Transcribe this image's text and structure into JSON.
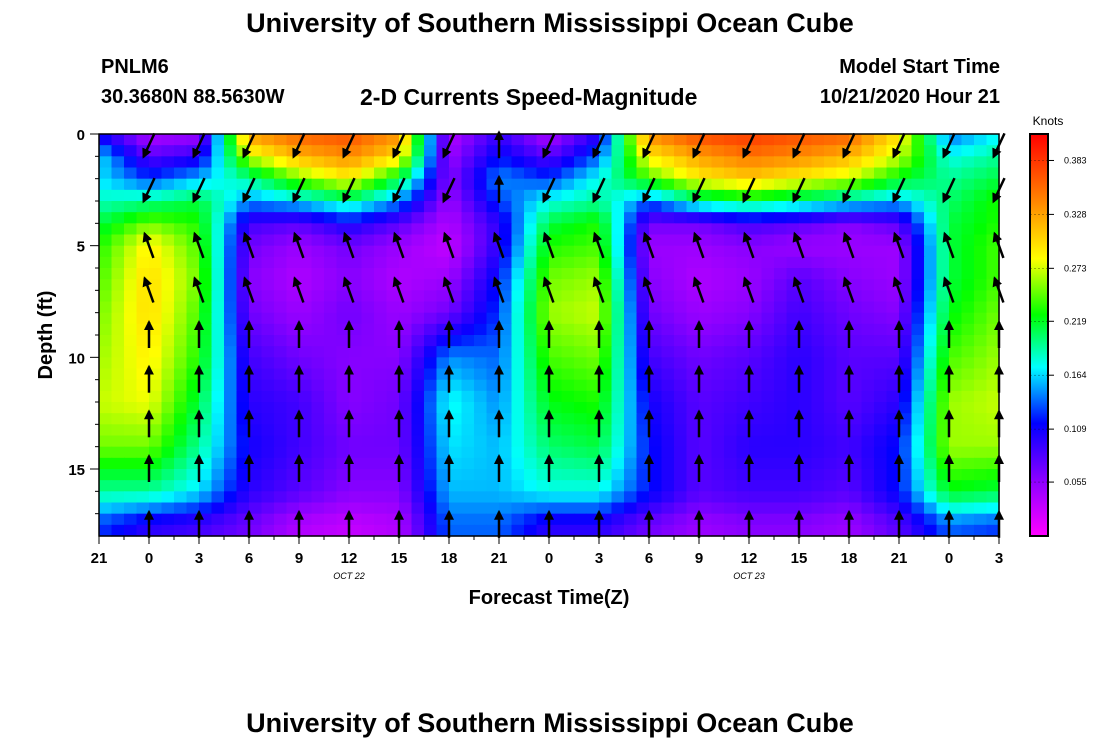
{
  "header": {
    "title": "University of Southern Mississippi Ocean Cube",
    "footer_title": "University of Southern Mississippi Ocean Cube",
    "station_id": "PNLM6",
    "station_coords": "30.3680N 88.5630W",
    "model_start_label": "Model Start Time",
    "model_start_value": "10/21/2020 Hour 21"
  },
  "chart_data": {
    "type": "heatmap",
    "title": "2-D Currents Speed-Magnitude",
    "xlabel": "Forecast Time(Z)",
    "ylabel": "Depth (ft)",
    "x_ticks": [
      "21",
      "0",
      "3",
      "6",
      "9",
      "12",
      "15",
      "18",
      "21",
      "0",
      "3",
      "6",
      "9",
      "12",
      "15",
      "18",
      "21",
      "0",
      "3"
    ],
    "y_ticks": [
      "0",
      "5",
      "10",
      "15"
    ],
    "date_labels": [
      {
        "text": "OCT 22",
        "at_tick": 5
      },
      {
        "text": "OCT 23",
        "at_tick": 13
      }
    ],
    "hours_range": [
      0,
      54
    ],
    "depth_range_ft": [
      0,
      18
    ],
    "colorbar": {
      "label": "Knots",
      "ticks": [
        "0.383",
        "0.328",
        "0.273",
        "0.219",
        "0.164",
        "0.109",
        "0.055"
      ],
      "range": [
        0,
        0.41
      ]
    },
    "vector_columns_hours": [
      3,
      6,
      9,
      12,
      15,
      18,
      21,
      24,
      27,
      30,
      33,
      36,
      39,
      42,
      45,
      48,
      51,
      54
    ],
    "vector_rows_ft": [
      0.5,
      2.5,
      5,
      7,
      9,
      11,
      13,
      15,
      17.5
    ],
    "speed_grid": {
      "depths_ft": [
        0.3,
        1,
        2,
        3,
        4,
        5,
        6.5,
        8,
        10,
        12,
        14,
        16,
        17.5
      ],
      "hours": [
        0,
        3,
        6,
        9,
        12,
        15,
        18,
        21,
        24,
        27,
        30,
        33,
        36,
        39,
        42,
        45,
        48,
        51,
        54
      ],
      "values": [
        [
          0.12,
          0.05,
          0.06,
          0.33,
          0.36,
          0.37,
          0.34,
          0.04,
          0.1,
          0.05,
          0.11,
          0.34,
          0.37,
          0.38,
          0.37,
          0.36,
          0.3,
          0.15,
          0.18
        ],
        [
          0.17,
          0.08,
          0.1,
          0.28,
          0.33,
          0.35,
          0.31,
          0.05,
          0.12,
          0.08,
          0.14,
          0.3,
          0.34,
          0.36,
          0.35,
          0.33,
          0.28,
          0.18,
          0.2
        ],
        [
          0.17,
          0.13,
          0.16,
          0.2,
          0.26,
          0.3,
          0.22,
          0.06,
          0.15,
          0.13,
          0.18,
          0.25,
          0.3,
          0.32,
          0.3,
          0.28,
          0.23,
          0.2,
          0.22
        ],
        [
          0.19,
          0.2,
          0.22,
          0.15,
          0.17,
          0.2,
          0.15,
          0.05,
          0.13,
          0.18,
          0.2,
          0.14,
          0.2,
          0.22,
          0.2,
          0.18,
          0.16,
          0.21,
          0.24
        ],
        [
          0.22,
          0.26,
          0.24,
          0.09,
          0.08,
          0.11,
          0.08,
          0.04,
          0.1,
          0.22,
          0.24,
          0.07,
          0.07,
          0.09,
          0.08,
          0.06,
          0.08,
          0.22,
          0.24
        ],
        [
          0.24,
          0.3,
          0.25,
          0.07,
          0.05,
          0.07,
          0.05,
          0.03,
          0.1,
          0.24,
          0.25,
          0.05,
          0.05,
          0.06,
          0.05,
          0.05,
          0.05,
          0.22,
          0.25
        ],
        [
          0.25,
          0.31,
          0.26,
          0.06,
          0.04,
          0.06,
          0.04,
          0.05,
          0.12,
          0.26,
          0.27,
          0.06,
          0.04,
          0.05,
          0.08,
          0.06,
          0.05,
          0.22,
          0.25
        ],
        [
          0.26,
          0.31,
          0.25,
          0.07,
          0.05,
          0.07,
          0.05,
          0.07,
          0.13,
          0.27,
          0.28,
          0.07,
          0.05,
          0.06,
          0.09,
          0.07,
          0.06,
          0.23,
          0.26
        ],
        [
          0.27,
          0.3,
          0.24,
          0.09,
          0.07,
          0.06,
          0.06,
          0.15,
          0.14,
          0.25,
          0.26,
          0.09,
          0.07,
          0.08,
          0.1,
          0.08,
          0.08,
          0.25,
          0.27
        ],
        [
          0.28,
          0.29,
          0.22,
          0.1,
          0.09,
          0.06,
          0.07,
          0.18,
          0.15,
          0.23,
          0.24,
          0.11,
          0.08,
          0.09,
          0.1,
          0.08,
          0.1,
          0.27,
          0.28
        ],
        [
          0.26,
          0.26,
          0.2,
          0.11,
          0.09,
          0.07,
          0.07,
          0.17,
          0.16,
          0.21,
          0.22,
          0.12,
          0.08,
          0.1,
          0.1,
          0.09,
          0.12,
          0.27,
          0.27
        ],
        [
          0.2,
          0.2,
          0.17,
          0.1,
          0.08,
          0.06,
          0.06,
          0.16,
          0.16,
          0.18,
          0.18,
          0.12,
          0.08,
          0.09,
          0.09,
          0.08,
          0.12,
          0.23,
          0.22
        ],
        [
          0.13,
          0.1,
          0.09,
          0.07,
          0.04,
          0.03,
          0.04,
          0.14,
          0.14,
          0.1,
          0.1,
          0.07,
          0.05,
          0.06,
          0.06,
          0.05,
          0.08,
          0.14,
          0.13
        ]
      ]
    }
  },
  "colors": {
    "frame": "#000000",
    "colormap": [
      "#ff00ff",
      "#8a00ff",
      "#0000ff",
      "#00ffff",
      "#00ff00",
      "#ffff00",
      "#ff8800",
      "#ff0000"
    ]
  }
}
